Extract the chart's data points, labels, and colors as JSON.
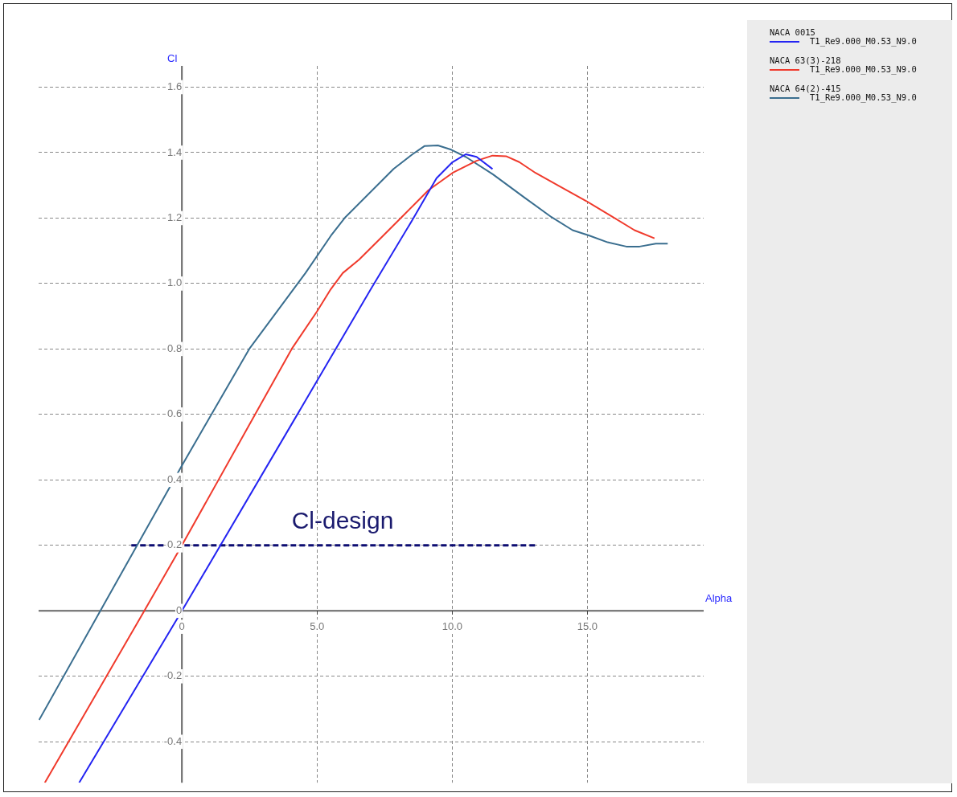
{
  "chart_data": {
    "type": "line",
    "xlabel": "Alpha",
    "ylabel": "Cl",
    "xlim": [
      -5.3,
      19.3
    ],
    "ylim": [
      -0.525,
      1.665
    ],
    "xticks": [
      {
        "value": 0,
        "label": "0"
      },
      {
        "value": 5,
        "label": "5.0"
      },
      {
        "value": 10,
        "label": "10.0"
      },
      {
        "value": 15,
        "label": "15.0"
      }
    ],
    "yticks": [
      -0.4,
      -0.2,
      0,
      0.2,
      0.4,
      0.6,
      0.8,
      {
        "value": 1,
        "label": "1.0"
      },
      1.2,
      1.4,
      1.6
    ],
    "grid": true,
    "legend": "top right",
    "marker": "none",
    "line_style": "solid",
    "annotations": [
      "Cl-design"
    ],
    "series": [
      {
        "name": "NACA 0015\nT1_Re9.000_M0.53_N9.0",
        "color": "#2424f2",
        "x": [
          -3.8,
          0,
          4.27,
          6.99,
          8.53,
          9.42,
          10.01,
          10.5,
          10.9,
          11.49
        ],
        "values": [
          -0.525,
          0,
          0.6,
          0.983,
          1.195,
          1.322,
          1.371,
          1.395,
          1.387,
          1.35
        ]
      },
      {
        "name": "NACA 63(3)-218\nT1_Re9.000_M0.53_N9.0",
        "color": "#f03a2c",
        "x": [
          -5.07,
          -1.39,
          0,
          4.06,
          5.0,
          5.51,
          5.95,
          6.55,
          7.44,
          8.13,
          9.12,
          10.01,
          10.9,
          11.49,
          11.99,
          12.48,
          13.08,
          13.97,
          14.96,
          15.94,
          16.74,
          17.48
        ],
        "values": [
          -0.525,
          0,
          0.2,
          0.8,
          0.915,
          0.983,
          1.032,
          1.073,
          1.146,
          1.203,
          1.285,
          1.338,
          1.375,
          1.391,
          1.389,
          1.371,
          1.338,
          1.297,
          1.252,
          1.203,
          1.163,
          1.138
        ]
      },
      {
        "name": "NACA 64(2)-415\nT1_Re9.000_M0.53_N9.0",
        "color": "#3a6e8f",
        "x": [
          -5.28,
          0,
          2.49,
          4.57,
          5.51,
          6.05,
          7.83,
          8.53,
          8.97,
          9.47,
          9.96,
          10.5,
          11.5,
          12.7,
          13.67,
          14.45,
          15.05,
          15.75,
          16.44,
          16.93,
          17.53,
          17.97
        ],
        "values": [
          -0.333,
          0.444,
          0.8,
          1.032,
          1.146,
          1.203,
          1.35,
          1.395,
          1.42,
          1.422,
          1.409,
          1.387,
          1.334,
          1.261,
          1.203,
          1.163,
          1.147,
          1.126,
          1.113,
          1.113,
          1.122,
          1.122
        ]
      },
      {
        "type": "line",
        "line_style": "dashed",
        "color": "#0c0c72",
        "x": [
          -1.87,
          13.1
        ],
        "values": [
          0.2,
          0.2
        ]
      }
    ]
  }
}
